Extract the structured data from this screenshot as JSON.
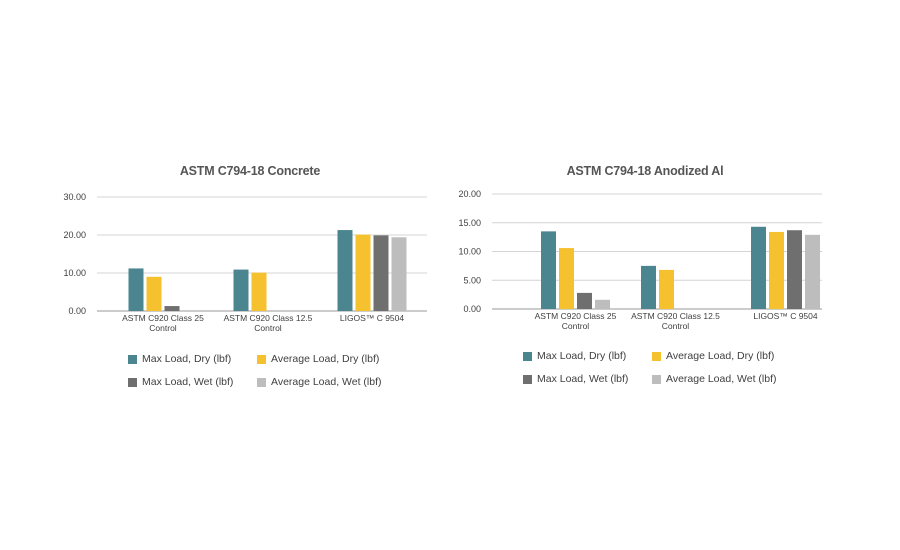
{
  "chart_data": [
    {
      "type": "bar",
      "title": "ASTM C794-18 Concrete",
      "categories": [
        "ASTM C920 Class 25 Control",
        "ASTM C920 Class 12.5 Control",
        "LIGOS™ C 9504"
      ],
      "category_lines": [
        [
          "ASTM C920 Class 25",
          "Control"
        ],
        [
          "ASTM C920 Class 12.5",
          "Control"
        ],
        [
          "LIGOS™ C 9504"
        ]
      ],
      "ylim": [
        0,
        30
      ],
      "yticks": [
        0,
        10,
        20,
        30
      ],
      "ytick_labels": [
        "0.00",
        "10.00",
        "20.00",
        "30.00"
      ],
      "grid": true,
      "legend_position": "bottom",
      "series": [
        {
          "name": "Max Load, Dry (lbf)",
          "color": "#4a8590",
          "values": [
            11.2,
            10.9,
            21.3
          ]
        },
        {
          "name": "Average Load, Dry (lbf)",
          "color": "#f5c12e",
          "values": [
            9.0,
            10.1,
            20.1
          ]
        },
        {
          "name": "Max Load, Wet (lbf)",
          "color": "#6f6f6f",
          "values": [
            1.3,
            null,
            19.9
          ]
        },
        {
          "name": "Average Load, Wet (lbf)",
          "color": "#bdbdbd",
          "values": [
            null,
            null,
            19.4
          ]
        }
      ]
    },
    {
      "type": "bar",
      "title": "ASTM C794-18 Anodized Al",
      "categories": [
        "ASTM C920 Class 25 Control",
        "ASTM C920 Class 12.5 Control",
        "LIGOS™ C 9504"
      ],
      "category_lines": [
        [
          "ASTM C920 Class 25",
          "Control"
        ],
        [
          "ASTM C920 Class 12.5",
          "Control"
        ],
        [
          "LIGOS™ C 9504"
        ]
      ],
      "ylim": [
        0,
        20
      ],
      "yticks": [
        0,
        5,
        10,
        15,
        20
      ],
      "ytick_labels": [
        "0.00",
        "5.00",
        "10.00",
        "15.00",
        "20.00"
      ],
      "grid": true,
      "legend_position": "bottom",
      "series": [
        {
          "name": "Max Load, Dry (lbf)",
          "color": "#4a8590",
          "values": [
            13.5,
            7.5,
            14.3
          ]
        },
        {
          "name": "Average Load, Dry (lbf)",
          "color": "#f5c12e",
          "values": [
            10.6,
            6.8,
            13.4
          ]
        },
        {
          "name": "Max Load, Wet (lbf)",
          "color": "#6f6f6f",
          "values": [
            2.8,
            null,
            13.7
          ]
        },
        {
          "name": "Average Load, Wet (lbf)",
          "color": "#bdbdbd",
          "values": [
            1.6,
            null,
            12.9
          ]
        }
      ]
    }
  ]
}
